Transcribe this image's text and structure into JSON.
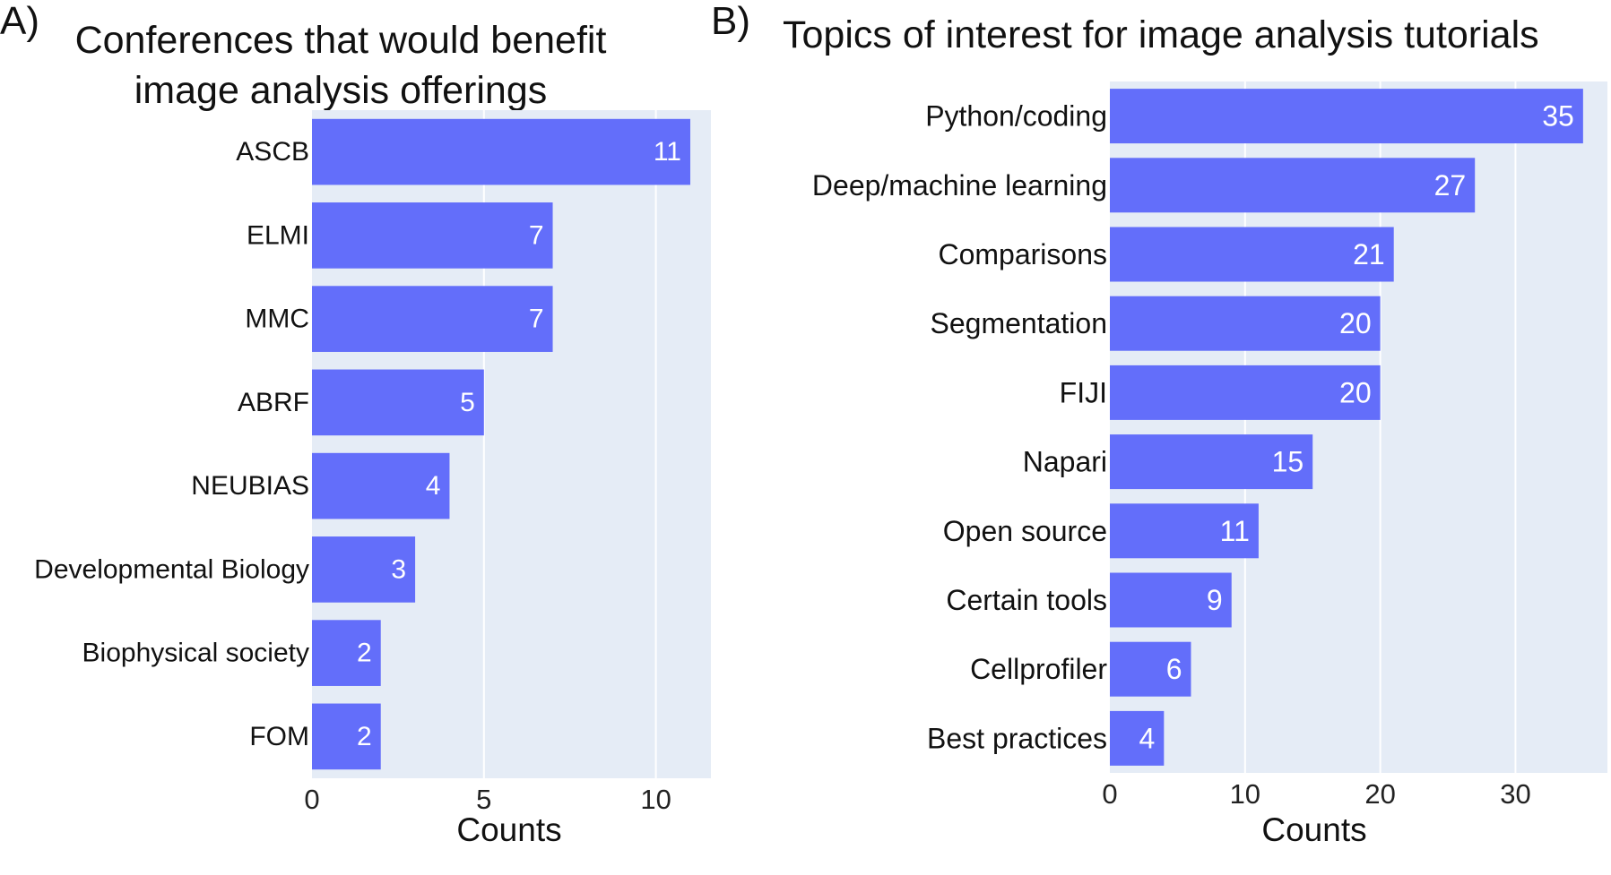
{
  "panels": {
    "a": {
      "label": "A)",
      "title_lines": [
        "Conferences that would benefit",
        "image analysis offerings"
      ]
    },
    "b": {
      "label": "B)",
      "title_lines": [
        "Topics of interest for image analysis tutorials"
      ]
    }
  },
  "colors": {
    "bar": "#636efa",
    "plot_bg": "#e5ecf6",
    "grid": "#ffffff",
    "bar_text": "#ffffff"
  },
  "chart_data": [
    {
      "type": "bar",
      "orientation": "horizontal",
      "title": "Conferences that would benefit image analysis offerings",
      "xlabel": "Counts",
      "ylabel": "",
      "categories": [
        "ASCB",
        "ELMI",
        "MMC",
        "ABRF",
        "NEUBIAS",
        "Developmental Biology",
        "Biophysical society",
        "FOM"
      ],
      "values": [
        11,
        7,
        7,
        5,
        4,
        3,
        2,
        2
      ],
      "xlim": [
        0,
        11.6
      ],
      "xticks": [
        0,
        5,
        10
      ],
      "grid": true,
      "data_labels": true
    },
    {
      "type": "bar",
      "orientation": "horizontal",
      "title": "Topics of interest for image analysis tutorials",
      "xlabel": "Counts",
      "ylabel": "",
      "categories": [
        "Python/coding",
        "Deep/machine learning",
        "Comparisons",
        "Segmentation",
        "FIJI",
        "Napari",
        "Open source",
        "Certain tools",
        "Cellprofiler",
        "Best practices"
      ],
      "values": [
        35,
        27,
        21,
        20,
        20,
        15,
        11,
        9,
        6,
        4
      ],
      "xlim": [
        0,
        36.8
      ],
      "xticks": [
        0,
        10,
        20,
        30
      ],
      "grid": true,
      "data_labels": true
    }
  ]
}
